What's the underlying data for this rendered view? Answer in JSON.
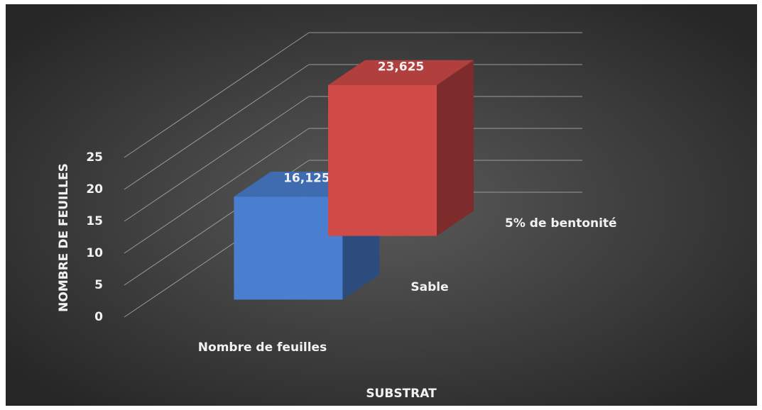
{
  "chart_data": {
    "type": "bar3d",
    "x_label": "SUBSTRAT",
    "y_label": "NOMBRE DE FEUILLES",
    "categories": [
      "Nombre de feuilles"
    ],
    "series": [
      {
        "name": "Sable",
        "color": "#4a7fd0",
        "values": [
          16.125
        ],
        "value_labels": [
          "16,125"
        ]
      },
      {
        "name": "5% de bentonité",
        "color": "#d04a48",
        "values": [
          23.625
        ],
        "value_labels": [
          "23,625"
        ]
      }
    ],
    "ylim": [
      0,
      25
    ],
    "yticks": [
      0,
      5,
      10,
      15,
      20,
      25
    ],
    "grid": true
  }
}
